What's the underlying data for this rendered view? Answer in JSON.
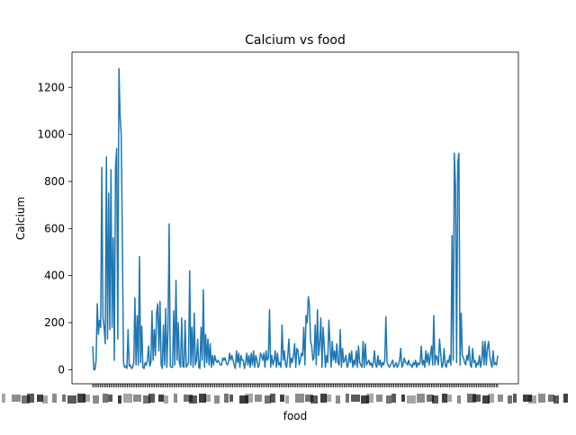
{
  "chart_data": {
    "type": "line",
    "title": "Calcium vs food",
    "xlabel": "food",
    "ylabel": "Calcium",
    "ylim": [
      -60,
      1350
    ],
    "yticks": [
      0,
      200,
      400,
      600,
      800,
      1000,
      1200
    ],
    "grid": false,
    "legend": "none",
    "line_color": "#1f77b4",
    "x_tick_count": 270,
    "x_tick_labels_visible": "overlapping, illegible",
    "series": [
      {
        "values": [
          100,
          0,
          0,
          40,
          280,
          150,
          210,
          180,
          860,
          220,
          180,
          110,
          905,
          130,
          750,
          170,
          850,
          180,
          560,
          40,
          860,
          940,
          130,
          1280,
          1080,
          1000,
          560,
          30,
          10,
          15,
          5,
          170,
          15,
          20,
          5,
          10,
          30,
          305,
          20,
          230,
          20,
          480,
          30,
          185,
          10,
          5,
          30,
          20,
          40,
          100,
          15,
          30,
          250,
          40,
          170,
          60,
          240,
          280,
          80,
          290,
          20,
          5,
          190,
          20,
          260,
          10,
          170,
          620,
          15,
          10,
          10,
          250,
          20,
          380,
          40,
          200,
          30,
          10,
          220,
          15,
          10,
          210,
          10,
          20,
          30,
          420,
          20,
          180,
          10,
          240,
          20,
          40,
          130,
          10,
          5,
          180,
          40,
          340,
          10,
          150,
          30,
          130,
          20,
          110,
          10,
          60,
          20,
          60,
          40,
          30,
          40,
          30,
          20,
          20,
          50,
          40,
          50,
          30,
          20,
          30,
          70,
          40,
          60,
          40,
          20,
          5,
          80,
          30,
          70,
          10,
          60,
          40,
          40,
          5,
          30,
          70,
          20,
          60,
          10,
          70,
          20,
          80,
          10,
          60,
          40,
          10,
          20,
          70,
          60,
          40,
          70,
          10,
          80,
          40,
          50,
          255,
          10,
          60,
          20,
          40,
          80,
          10,
          70,
          20,
          30,
          10,
          190,
          40,
          80,
          20,
          10,
          60,
          130,
          10,
          50,
          30,
          60,
          110,
          10,
          90,
          80,
          20,
          40,
          70,
          60,
          180,
          20,
          230,
          200,
          310,
          270,
          120,
          100,
          40,
          50,
          190,
          20,
          255,
          60,
          110,
          220,
          10,
          180,
          100,
          10,
          60,
          30,
          210,
          110,
          10,
          120,
          40,
          80,
          30,
          110,
          30,
          20,
          170,
          10,
          90,
          30,
          40,
          60,
          10,
          20,
          70,
          30,
          80,
          10,
          40,
          20,
          80,
          10,
          100,
          30,
          20,
          10,
          120,
          10,
          110,
          20,
          30,
          40,
          20,
          30,
          10,
          30,
          80,
          20,
          10,
          60,
          20,
          40,
          10,
          30,
          20,
          40,
          225,
          30,
          20,
          10,
          20,
          30,
          40,
          10,
          20,
          30,
          10,
          20,
          40,
          90,
          10,
          20,
          50,
          30,
          30,
          20,
          40,
          20,
          20,
          10,
          30,
          20,
          40,
          10,
          30,
          20,
          30,
          100,
          20,
          40,
          10,
          80,
          30,
          70,
          20,
          60,
          100,
          20,
          230,
          20,
          60,
          50,
          20,
          130,
          70,
          10,
          20,
          90,
          20,
          10,
          40,
          30,
          60,
          20,
          570,
          40,
          920,
          780,
          30,
          880,
          920,
          20,
          240,
          60,
          50,
          30,
          20,
          60,
          40,
          100,
          20,
          10,
          90,
          30,
          40,
          10,
          30,
          20,
          60,
          10,
          40,
          120,
          20,
          120,
          20,
          90,
          120,
          60,
          30,
          10,
          80,
          20,
          30,
          20,
          60
        ]
      }
    ]
  }
}
